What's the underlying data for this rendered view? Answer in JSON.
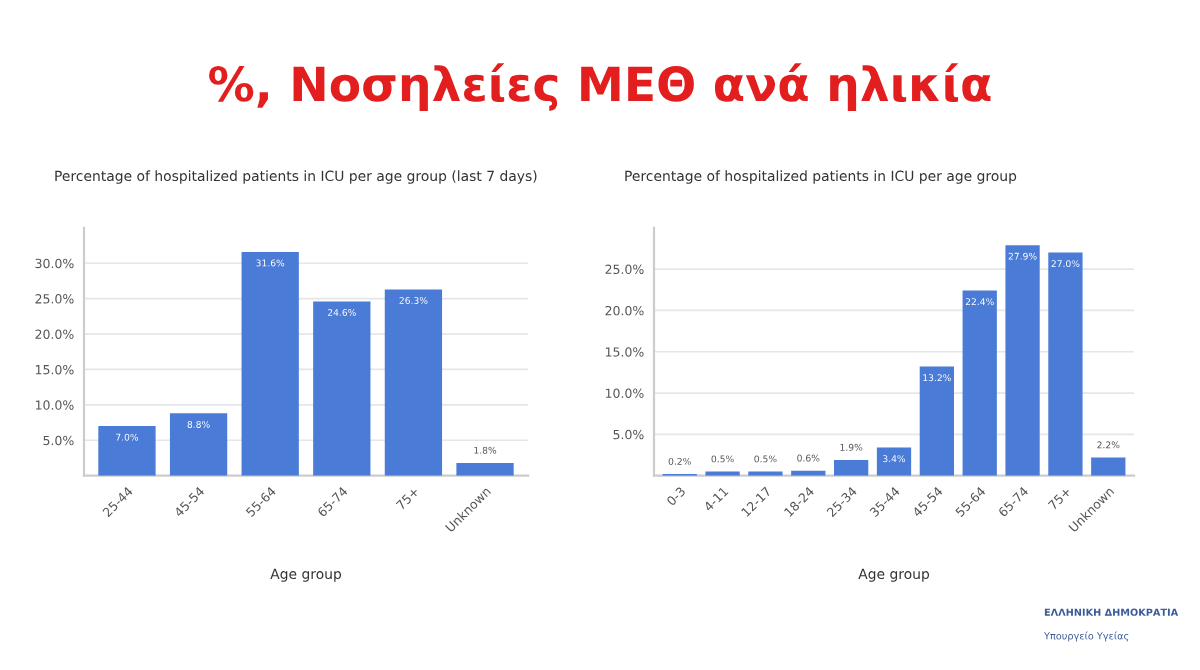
{
  "chart_data": [
    {
      "type": "bar",
      "title": "Percentage of hospitalized patients in ICU per age group (last 7 days)",
      "xlabel": "Age group",
      "annotations": [
        "%, Νοσηλείες ΜΕΘ ανά ηλικία"
      ],
      "categories": [
        "25-44",
        "45-54",
        "55-64",
        "65-74",
        "75+",
        "Unknown"
      ],
      "values": [
        7.0,
        8.8,
        31.6,
        24.6,
        26.3,
        1.8
      ],
      "value_labels": [
        "7.0%",
        "8.8%",
        "31.6%",
        "24.6%",
        "26.3%",
        "1.8%"
      ],
      "color": "#4a7bd6",
      "ylim": [
        0,
        35
      ],
      "yticks": [
        {
          "value": 5,
          "label": "5.0%"
        },
        {
          "value": 10,
          "label": "10.0%"
        },
        {
          "value": 15,
          "label": "15.0%"
        },
        {
          "value": 20,
          "label": "20.0%"
        },
        {
          "value": 25,
          "label": "25.0%"
        },
        {
          "value": 30,
          "label": "30.0%"
        }
      ],
      "grid": "y"
    },
    {
      "type": "bar",
      "title": "Percentage of hospitalized patients in ICU per age group",
      "xlabel": "Age group",
      "annotations": [
        "ΕΛΛΗΝΙΚΗ ΔΗΜΟΚΡΑΤΙΑ",
        "Υπουργείο Υγείας"
      ],
      "categories": [
        "0-3",
        "4-11",
        "12-17",
        "18-24",
        "25-34",
        "35-44",
        "45-54",
        "55-64",
        "65-74",
        "75+",
        "Unknown"
      ],
      "values": [
        0.2,
        0.5,
        0.5,
        0.6,
        1.9,
        3.4,
        13.2,
        22.4,
        27.9,
        27.0,
        2.2
      ],
      "value_labels": [
        "0.2%",
        "0.5%",
        "0.5%",
        "0.6%",
        "1.9%",
        "3.4%",
        "13.2%",
        "22.4%",
        "27.9%",
        "27.0%",
        "2.2%"
      ],
      "color": "#4a7bd6",
      "ylim": [
        0,
        30
      ],
      "yticks": [
        {
          "value": 5,
          "label": "5.0%"
        },
        {
          "value": 10,
          "label": "10.0%"
        },
        {
          "value": 15,
          "label": "15.0%"
        },
        {
          "value": 20,
          "label": "20.0%"
        },
        {
          "value": 25,
          "label": "25.0%"
        }
      ],
      "grid": "y"
    }
  ]
}
